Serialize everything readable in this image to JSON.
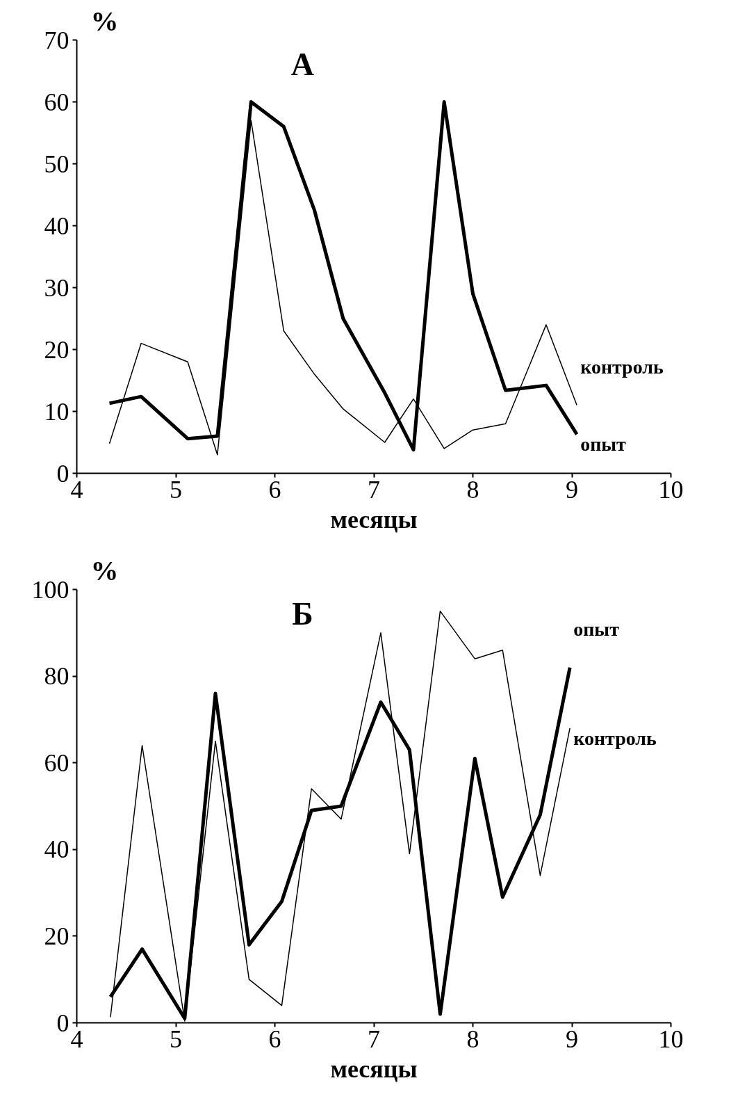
{
  "chart_data": [
    {
      "type": "line",
      "title": "А",
      "xlabel": "месяцы",
      "ylabel": "%",
      "xlim": [
        4,
        10
      ],
      "ylim": [
        0,
        70
      ],
      "xticks": [
        4,
        5,
        6,
        7,
        8,
        9,
        10
      ],
      "yticks": [
        0,
        10,
        20,
        30,
        40,
        50,
        60,
        70
      ],
      "grid": false,
      "legend": false,
      "marker": "none",
      "series": [
        {
          "name": "контроль",
          "color": "#000000",
          "x": [
            4.33,
            4.65,
            5.12,
            5.42,
            5.76,
            6.09,
            6.4,
            6.69,
            7.11,
            7.4,
            7.71,
            8.0,
            8.33,
            8.74,
            9.05
          ],
          "values": [
            4.8,
            21,
            18,
            3,
            57,
            23,
            16,
            10.4,
            5,
            12,
            4,
            7,
            8,
            24,
            11
          ]
        },
        {
          "name": "опыт",
          "color": "#000000",
          "x": [
            4.33,
            4.65,
            5.12,
            5.42,
            5.76,
            6.09,
            6.4,
            6.69,
            7.11,
            7.4,
            7.71,
            8.0,
            8.33,
            8.74,
            9.05
          ],
          "values": [
            11.3,
            12.4,
            5.6,
            6,
            60,
            56,
            42.5,
            25,
            13,
            3.8,
            60,
            29,
            13.4,
            14.2,
            6.3
          ]
        }
      ]
    },
    {
      "type": "line",
      "title": "Б",
      "xlabel": "месяцы",
      "ylabel": "%",
      "xlim": [
        4,
        10
      ],
      "ylim": [
        0,
        100
      ],
      "xticks": [
        4,
        5,
        6,
        7,
        8,
        9,
        10
      ],
      "yticks": [
        0,
        20,
        40,
        60,
        80,
        100
      ],
      "grid": false,
      "legend": false,
      "marker": "none",
      "series": [
        {
          "name": "контроль",
          "color": "#000000",
          "x": [
            4.34,
            4.66,
            5.09,
            5.4,
            5.74,
            6.07,
            6.37,
            6.67,
            7.07,
            7.36,
            7.67,
            8.02,
            8.3,
            8.68,
            8.98
          ],
          "values": [
            1.3,
            64,
            0.4,
            65,
            10,
            4,
            54,
            47,
            90,
            39,
            95,
            84,
            86,
            34,
            68
          ]
        },
        {
          "name": "опыт",
          "color": "#000000",
          "x": [
            4.34,
            4.66,
            5.09,
            5.4,
            5.74,
            6.07,
            6.37,
            6.67,
            7.07,
            7.36,
            7.67,
            8.02,
            8.3,
            8.68,
            8.98
          ],
          "values": [
            6,
            17,
            1,
            76,
            18,
            28,
            49,
            50,
            74,
            63,
            2,
            61,
            29,
            48,
            82
          ]
        }
      ]
    }
  ]
}
